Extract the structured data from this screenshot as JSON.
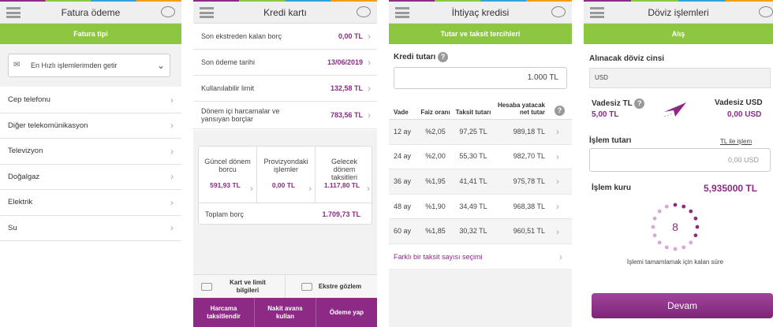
{
  "screens": [
    {
      "title": "Fatura ödeme",
      "banner": "Fatura tipi",
      "dropdown": "En Hızlı işlemlerimden getir",
      "items": [
        "Cep telefonu",
        "Diğer telekomünikasyon",
        "Televizyon",
        "Doğalgaz",
        "Elektrik",
        "Su"
      ]
    },
    {
      "title": "Kredi kartı",
      "rows": [
        {
          "label": "Son ekstreden kalan borç",
          "value": "0,00 TL"
        },
        {
          "label": "Son ödeme tarihi",
          "value": "13/06/2019"
        },
        {
          "label": "Kullanılabilir limit",
          "value": "132,58 TL"
        },
        {
          "label": "Dönem içi harcamalar ve yansıyan borçlar",
          "value": "783,56 TL"
        }
      ],
      "card": [
        {
          "label": "Güncel dönem borcu",
          "value": "591,93 TL"
        },
        {
          "label": "Provizyondaki işlemler",
          "value": "0,00 TL"
        },
        {
          "label": "Gelecek dönem taksitleri",
          "value": "1.117,80 TL"
        }
      ],
      "total": {
        "label": "Toplam borç",
        "value": "1.709,73 TL"
      },
      "tabs": [
        "Kart ve limit bilgileri",
        "Ekstre gözlem"
      ],
      "buttons": [
        "Harcama taksitlendir",
        "Nakit avans kullan",
        "Ödeme yap"
      ]
    },
    {
      "title": "İhtiyaç kredisi",
      "banner": "Tutar ve taksit tercihleri",
      "amount_label": "Kredi tutarı",
      "amount": "1.000 TL",
      "headers": [
        "Vade",
        "Faiz oranı",
        "Taksit tutarı",
        "Hesaba yatacak net tutar"
      ],
      "rows": [
        [
          "12 ay",
          "%2,05",
          "97,25 TL",
          "989,18 TL"
        ],
        [
          "24 ay",
          "%2,00",
          "55,30 TL",
          "982,70 TL"
        ],
        [
          "36 ay",
          "%1,95",
          "41,41 TL",
          "975,78 TL"
        ],
        [
          "48 ay",
          "%1,90",
          "34,49 TL",
          "968,38 TL"
        ],
        [
          "60 ay",
          "%1,85",
          "30,32 TL",
          "960,51 TL"
        ]
      ],
      "link": "Farklı bir taksit sayısı seçimi"
    },
    {
      "title": "Döviz işlemleri",
      "banner": "Alış",
      "currency_label": "Alınacak döviz cinsi",
      "currency": "USD",
      "from_label": "Vadesiz TL",
      "from_value": "5,00 TL",
      "to_label": "Vadesiz USD",
      "to_value": "0,00 USD",
      "amount_label": "İşlem tutarı",
      "amount_link": "TL ile işlem",
      "amount": "0,00 USD",
      "rate_label": "İşlem kuru",
      "rate": "5,935000 TL",
      "countdown": "8",
      "countdown_caption": "İşlemi tamamlamak için kalan süre",
      "button": "Devam"
    }
  ]
}
